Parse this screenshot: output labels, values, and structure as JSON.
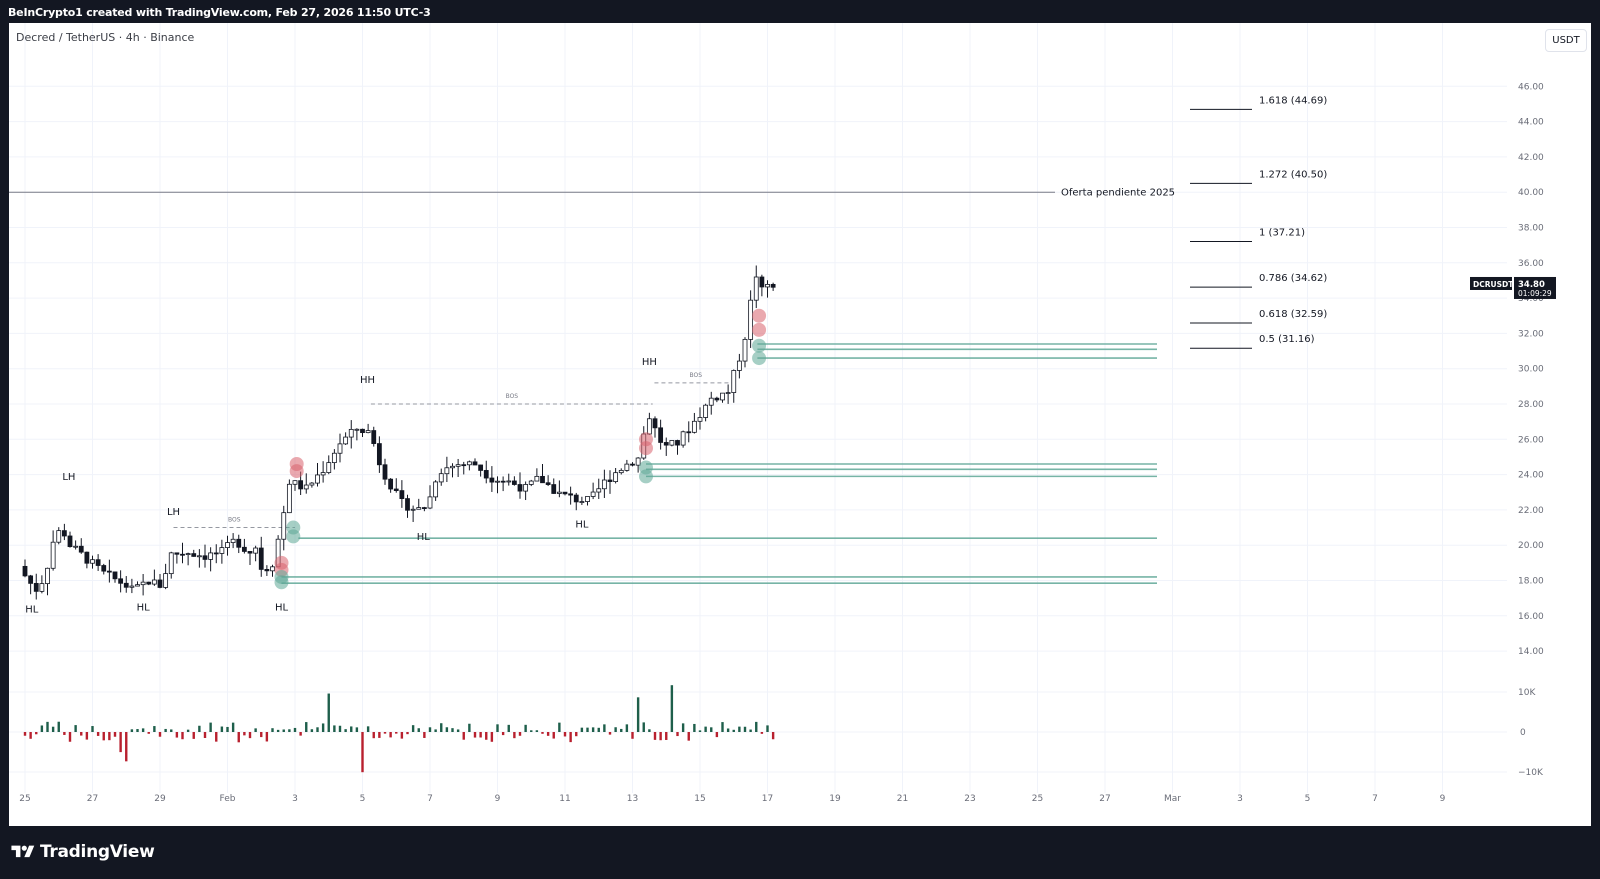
{
  "header": {
    "text": "BeInCrypto1 created with TradingView.com, Feb 27, 2026 11:50 UTC-3"
  },
  "chart": {
    "symbol_title": "Decred / TetherUS · 4h · Binance",
    "currency_button": "USDT",
    "ticker_label": "DCRUSDT",
    "last_price": "34.80",
    "countdown": "01:09:29"
  },
  "footer": {
    "brand": "TradingView"
  },
  "colors": {
    "up": "#1e5f4b",
    "down": "#b8202e",
    "zone_green": "#5fa897",
    "zone_red": "#d9646f",
    "grid": "#f0f3fa",
    "axis_text": "#6a6d78"
  },
  "chart_data": {
    "type": "candlestick",
    "timeframe": "4h",
    "y_axis": {
      "ticks": [
        "46.00",
        "44.00",
        "42.00",
        "40.00",
        "38.00",
        "36.00",
        "34.00",
        "32.00",
        "30.00",
        "28.00",
        "26.00",
        "24.00",
        "22.00",
        "20.00",
        "18.00",
        "16.00",
        "14.00"
      ],
      "range": [
        13.2,
        47.8
      ]
    },
    "volume_axis": {
      "ticks": [
        "10K",
        "0",
        "−10K"
      ]
    },
    "x_axis": {
      "ticks": [
        "25",
        "27",
        "29",
        "Feb",
        "3",
        "5",
        "7",
        "9",
        "11",
        "13",
        "15",
        "17",
        "19",
        "21",
        "23",
        "25",
        "27",
        "Mar",
        "3",
        "5",
        "7",
        "9"
      ]
    },
    "price_path": [
      [
        0,
        18.8
      ],
      [
        0.25,
        18.0
      ],
      [
        0.5,
        17.5
      ],
      [
        0.75,
        18.2
      ],
      [
        1.0,
        20.2
      ],
      [
        1.25,
        21.0
      ],
      [
        1.5,
        20.0
      ],
      [
        2.0,
        19.2
      ],
      [
        2.5,
        18.4
      ],
      [
        3.0,
        17.9
      ],
      [
        3.4,
        17.4
      ],
      [
        3.8,
        18.0
      ],
      [
        4.2,
        17.7
      ],
      [
        4.5,
        19.5
      ],
      [
        5.0,
        19.6
      ],
      [
        5.5,
        19.4
      ],
      [
        6.0,
        19.6
      ],
      [
        6.4,
        20.3
      ],
      [
        6.8,
        19.6
      ],
      [
        7.0,
        19.9
      ],
      [
        7.2,
        18.5
      ],
      [
        7.5,
        19.0
      ],
      [
        7.75,
        21.0
      ],
      [
        8.0,
        23.6
      ],
      [
        8.5,
        23.2
      ],
      [
        9.0,
        24.3
      ],
      [
        9.5,
        25.8
      ],
      [
        10.0,
        26.6
      ],
      [
        10.4,
        26.4
      ],
      [
        10.7,
        24.5
      ],
      [
        11.0,
        23.4
      ],
      [
        11.3,
        22.4
      ],
      [
        11.8,
        22.0
      ],
      [
        12.1,
        22.3
      ],
      [
        12.4,
        24.2
      ],
      [
        13.0,
        24.6
      ],
      [
        13.5,
        24.6
      ],
      [
        14.0,
        23.8
      ],
      [
        14.5,
        23.6
      ],
      [
        15.0,
        23.2
      ],
      [
        15.4,
        23.8
      ],
      [
        16.0,
        22.9
      ],
      [
        16.5,
        22.6
      ],
      [
        16.9,
        22.5
      ],
      [
        17.3,
        23.5
      ],
      [
        17.7,
        24.2
      ],
      [
        18.0,
        24.6
      ],
      [
        18.4,
        25.0
      ],
      [
        18.6,
        27.6
      ],
      [
        18.8,
        26.7
      ],
      [
        19.1,
        25.5
      ],
      [
        19.5,
        25.8
      ],
      [
        20.0,
        27.0
      ],
      [
        20.5,
        28.3
      ],
      [
        21.0,
        28.7
      ],
      [
        21.3,
        30.4
      ],
      [
        21.55,
        32.2
      ],
      [
        21.8,
        35.5
      ],
      [
        22.0,
        34.4
      ],
      [
        22.2,
        34.8
      ]
    ],
    "swing_labels": [
      {
        "text": "HL",
        "x": 0.2,
        "price": 16.2
      },
      {
        "text": "LH",
        "x": 1.3,
        "price": 23.7
      },
      {
        "text": "HL",
        "x": 3.5,
        "price": 16.3
      },
      {
        "text": "LH",
        "x": 4.4,
        "price": 21.7
      },
      {
        "text": "HL",
        "x": 7.6,
        "price": 16.3
      },
      {
        "text": "HH",
        "x": 10.15,
        "price": 29.2
      },
      {
        "text": "HL",
        "x": 11.8,
        "price": 20.3
      },
      {
        "text": "HL",
        "x": 16.5,
        "price": 21.0
      },
      {
        "text": "HH",
        "x": 18.5,
        "price": 30.2
      }
    ],
    "bos": [
      {
        "text": "BOS",
        "price": 21.0,
        "x1": 4.4,
        "x2": 8.0
      },
      {
        "text": "BOS",
        "price": 28.0,
        "x1": 10.25,
        "x2": 18.6
      },
      {
        "text": "BOS",
        "price": 29.2,
        "x1": 18.65,
        "x2": 21.1
      }
    ],
    "horizontal_levels": [
      {
        "label": "Oferta pendiente 2025",
        "price": 40.0
      }
    ],
    "fib_levels": [
      {
        "label": "1.618 (44.69)",
        "price": 44.69
      },
      {
        "label": "1.272 (40.50)",
        "price": 40.5
      },
      {
        "label": "1 (37.21)",
        "price": 37.21
      },
      {
        "label": "0.786 (34.62)",
        "price": 34.62
      },
      {
        "label": "0.618 (32.59)",
        "price": 32.59
      },
      {
        "label": "0.5 (31.16)",
        "price": 31.16
      }
    ],
    "support_zones": [
      {
        "price": 18.2,
        "from": 7.6
      },
      {
        "price": 17.85,
        "from": 7.6
      },
      {
        "price": 20.4,
        "from": 8.1
      },
      {
        "price": 24.6,
        "from": 18.4
      },
      {
        "price": 24.3,
        "from": 18.4
      },
      {
        "price": 23.9,
        "from": 18.4
      },
      {
        "price": 31.4,
        "from": 21.7
      },
      {
        "price": 31.1,
        "from": 21.7
      },
      {
        "price": 30.6,
        "from": 21.7
      }
    ]
  }
}
